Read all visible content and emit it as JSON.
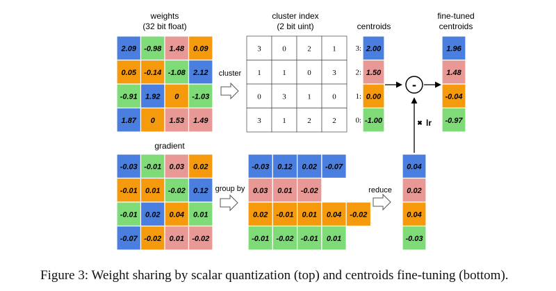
{
  "colors": {
    "blue": "#4a7fe0",
    "green": "#7fdb78",
    "red": "#e99995",
    "orange": "#f59a0c"
  },
  "titles": {
    "weights_l1": "weights",
    "weights_l2": "(32 bit float)",
    "cluster_index_l1": "cluster index",
    "cluster_index_l2": "(2 bit uint)",
    "centroids": "centroids",
    "finetuned_l1": "fine-tuned",
    "finetuned_l2": "centroids",
    "gradient": "gradient"
  },
  "labels": {
    "cluster": "cluster",
    "group_by": "group by",
    "reduce": "reduce",
    "lr": "lr",
    "times": "✖",
    "minus": "-"
  },
  "weights": [
    [
      {
        "v": "2.09",
        "c": "blue"
      },
      {
        "v": "-0.98",
        "c": "green"
      },
      {
        "v": "1.48",
        "c": "red"
      },
      {
        "v": "0.09",
        "c": "orange"
      }
    ],
    [
      {
        "v": "0.05",
        "c": "orange"
      },
      {
        "v": "-0.14",
        "c": "orange"
      },
      {
        "v": "-1.08",
        "c": "green"
      },
      {
        "v": "2.12",
        "c": "blue"
      }
    ],
    [
      {
        "v": "-0.91",
        "c": "green"
      },
      {
        "v": "1.92",
        "c": "blue"
      },
      {
        "v": "0",
        "c": "orange"
      },
      {
        "v": "-1.03",
        "c": "green"
      }
    ],
    [
      {
        "v": "1.87",
        "c": "blue"
      },
      {
        "v": "0",
        "c": "orange"
      },
      {
        "v": "1.53",
        "c": "red"
      },
      {
        "v": "1.49",
        "c": "red"
      }
    ]
  ],
  "cluster_index": [
    [
      "3",
      "0",
      "2",
      "1"
    ],
    [
      "1",
      "1",
      "0",
      "3"
    ],
    [
      "0",
      "3",
      "1",
      "0"
    ],
    [
      "3",
      "1",
      "2",
      "2"
    ]
  ],
  "centroids": [
    {
      "idx": "3:",
      "v": "2.00",
      "c": "blue"
    },
    {
      "idx": "2:",
      "v": "1.50",
      "c": "red"
    },
    {
      "idx": "1:",
      "v": "0.00",
      "c": "orange"
    },
    {
      "idx": "0:",
      "v": "-1.00",
      "c": "green"
    }
  ],
  "finetuned": [
    {
      "v": "1.96",
      "c": "blue"
    },
    {
      "v": "1.48",
      "c": "red"
    },
    {
      "v": "-0.04",
      "c": "orange"
    },
    {
      "v": "-0.97",
      "c": "green"
    }
  ],
  "gradient": [
    [
      {
        "v": "-0.03",
        "c": "blue"
      },
      {
        "v": "-0.01",
        "c": "green"
      },
      {
        "v": "0.03",
        "c": "red"
      },
      {
        "v": "0.02",
        "c": "orange"
      }
    ],
    [
      {
        "v": "-0.01",
        "c": "orange"
      },
      {
        "v": "0.01",
        "c": "orange"
      },
      {
        "v": "-0.02",
        "c": "green"
      },
      {
        "v": "0.12",
        "c": "blue"
      }
    ],
    [
      {
        "v": "-0.01",
        "c": "green"
      },
      {
        "v": "0.02",
        "c": "blue"
      },
      {
        "v": "0.04",
        "c": "orange"
      },
      {
        "v": "0.01",
        "c": "green"
      }
    ],
    [
      {
        "v": "-0.07",
        "c": "blue"
      },
      {
        "v": "-0.02",
        "c": "orange"
      },
      {
        "v": "0.01",
        "c": "red"
      },
      {
        "v": "-0.02",
        "c": "red"
      }
    ]
  ],
  "grouped": [
    {
      "c": "blue",
      "values": [
        "-0.03",
        "0.12",
        "0.02",
        "-0.07"
      ]
    },
    {
      "c": "red",
      "values": [
        "0.03",
        "0.01",
        "-0.02"
      ]
    },
    {
      "c": "orange",
      "values": [
        "0.02",
        "-0.01",
        "0.01",
        "0.04",
        "-0.02"
      ]
    },
    {
      "c": "green",
      "values": [
        "-0.01",
        "-0.02",
        "-0.01",
        "0.01"
      ]
    }
  ],
  "reduced": [
    {
      "v": "0.04",
      "c": "blue"
    },
    {
      "v": "0.02",
      "c": "red"
    },
    {
      "v": "0.04",
      "c": "orange"
    },
    {
      "v": "-0.03",
      "c": "green"
    }
  ],
  "caption": "Figure 3: Weight sharing by scalar quantization (top) and centroids fine-tuning (bottom)."
}
